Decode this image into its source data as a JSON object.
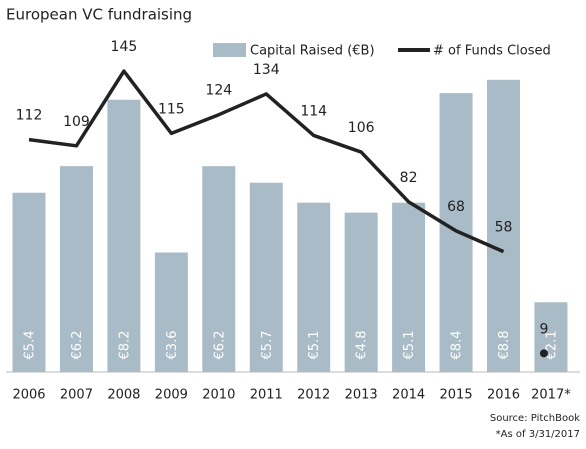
{
  "chart_data": {
    "type": "bar_line",
    "title": "European VC fundraising",
    "categories": [
      "2006",
      "2007",
      "2008",
      "2009",
      "2010",
      "2011",
      "2012",
      "2013",
      "2014",
      "2015",
      "2016",
      "2017*"
    ],
    "series": [
      {
        "name": "Capital Raised (€B)",
        "type": "bar",
        "color": "#a8bbc7",
        "values": [
          5.4,
          6.2,
          8.2,
          3.6,
          6.2,
          5.7,
          5.1,
          4.8,
          5.1,
          8.4,
          8.8,
          2.1
        ],
        "value_labels": [
          "€5.4",
          "€6.2",
          "€8.2",
          "€3.6",
          "€6.2",
          "€5.7",
          "€5.1",
          "€4.8",
          "€5.1",
          "€8.4",
          "€8.8",
          "€2.1"
        ]
      },
      {
        "name": "# of Funds Closed",
        "type": "line",
        "axis": "y2",
        "color": "#222222",
        "unconnected_last": true,
        "values": [
          112,
          109,
          145,
          115,
          124,
          134,
          114,
          106,
          82,
          68,
          58,
          9
        ]
      }
    ],
    "ylim": [
      0,
      10
    ],
    "y2lim": [
      0,
      160
    ],
    "source": "Source: PitchBook",
    "note": "*As of 3/31/2017"
  }
}
